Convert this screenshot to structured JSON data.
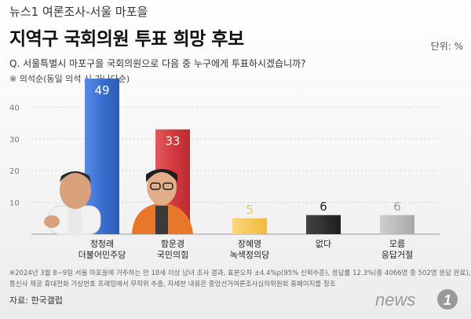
{
  "header": {
    "kicker": "뉴스1 여론조사-서울 마포을",
    "headline": "지역구 국회의원 투표 희망 후보",
    "unit": "단위: %",
    "question": "Q. 서울특별시 마포구을 국회의원으로 다음 중 누구에게 투표하시겠습니까?",
    "order_note": "※ 의석순(동일 의석 시 가나다순)"
  },
  "chart_data": {
    "type": "bar",
    "categories": [
      {
        "name": "정청래",
        "party": "더불어민주당"
      },
      {
        "name": "함운경",
        "party": "국민의힘"
      },
      {
        "name": "장혜영",
        "party": "녹색정의당"
      },
      {
        "name": "없다",
        "party": ""
      },
      {
        "name": "모름",
        "party": "응답거절"
      }
    ],
    "values": [
      49,
      33,
      5,
      6,
      6
    ],
    "colors": [
      "#3a6fd0",
      "#d43a3f",
      "#f6c24a",
      "#2b2b2b",
      "#b9b9b9"
    ],
    "yticks": [
      10,
      20,
      30,
      40
    ],
    "ylim": [
      0,
      50
    ],
    "grid": true,
    "unit": "%"
  },
  "footnotes": [
    "※2024년 3월 8~9일 서울 마포을에 거주하는 만 18세 이상 남녀 조사 결과, 표본오차 ±4.4%p(95% 신뢰수준), 응답률 12.3%(총 4066명 중 502명 응답 완료),",
    "통신사 제공 휴대전화 가상번호 프레임에서 무작위 추출, 자세한 내용은 중앙선거여론조사심의위원회 홈페이지를 참조"
  ],
  "source": "자료: 한국갤럽",
  "logo": {
    "text": "news",
    "mark": "1"
  }
}
